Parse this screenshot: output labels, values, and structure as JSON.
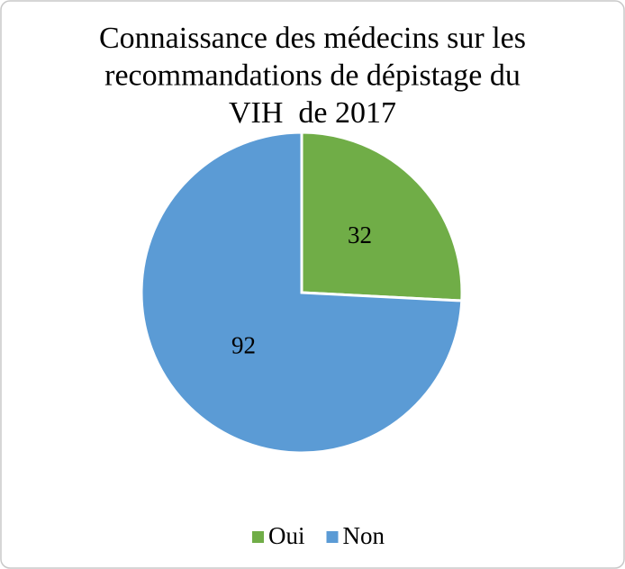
{
  "chart_data": {
    "type": "pie",
    "title": [
      "Connaissance des médecins sur les",
      "recommandations de dépistage du",
      "VIH  de 2017"
    ],
    "categories": [
      "Oui",
      "Non"
    ],
    "values": [
      32,
      92
    ],
    "colors": [
      "#70ad47",
      "#5b9bd5"
    ],
    "legend": "bottom"
  }
}
